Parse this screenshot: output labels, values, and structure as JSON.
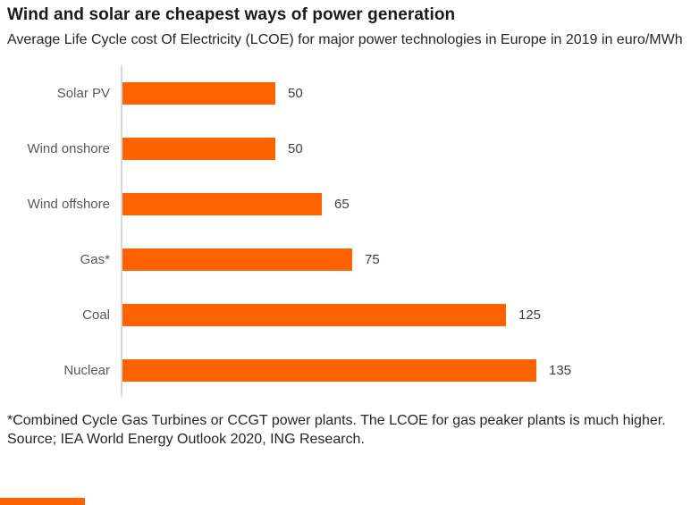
{
  "chart_data": {
    "type": "bar",
    "orientation": "horizontal",
    "title": "Wind and solar are cheapest ways of power generation",
    "subtitle": "Average Life Cycle cost Of Electricity (LCOE) for major power technologies in Europe in 2019 in euro/MWh",
    "categories": [
      "Solar PV",
      "Wind onshore",
      "Wind offshore",
      "Gas*",
      "Coal",
      "Nuclear"
    ],
    "values": [
      50,
      50,
      65,
      75,
      125,
      135
    ],
    "xlabel": "",
    "ylabel": "",
    "xlim": [
      0,
      140
    ],
    "grid": false,
    "legend": false,
    "value_labels": true,
    "bar_color": "#FF6200",
    "axis_line_color": "#d9d9d9"
  },
  "footnotes": {
    "note": "*Combined Cycle Gas Turbines or CCGT power plants. The LCOE for gas peaker plants is much higher.",
    "source": "Source; IEA World Energy Outlook 2020, ING Research."
  },
  "colors": {
    "accent": "#FF6200",
    "title_text": "#1a1a1a",
    "body_text": "#262626",
    "label_text": "#595959"
  }
}
